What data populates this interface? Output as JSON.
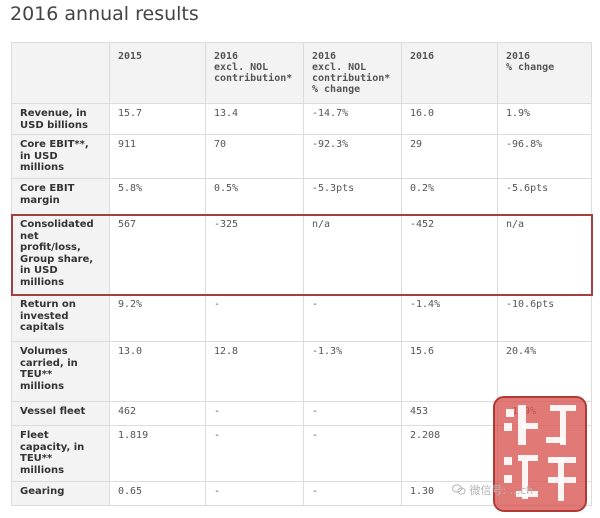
{
  "title": "2016 annual results",
  "columns": [
    "",
    "2015",
    "2016\nexcl. NOL\ncontribution*",
    "2016\nexcl. NOL\ncontribution*\n% change",
    "2016",
    "2016\n% change"
  ],
  "rows": [
    {
      "label": "Revenue, in\nUSD billions",
      "cells": [
        "15.7",
        "13.4",
        "-14.7%",
        "16.0",
        "1.9%"
      ]
    },
    {
      "label": "Core EBIT**,\nin USD\nmillions",
      "cells": [
        "911",
        "70",
        "-92.3%",
        "29",
        "-96.8%"
      ]
    },
    {
      "label": "Core EBIT\nmargin",
      "cells": [
        "5.8%",
        "0.5%",
        "-5.3pts",
        "0.2%",
        "-5.6pts"
      ]
    },
    {
      "label": "Consolidated\nnet\nprofit/loss,\nGroup share,\nin USD\nmillions",
      "cells": [
        "567",
        "-325",
        "n/a",
        "-452",
        "n/a"
      ],
      "highlighted": true
    },
    {
      "label": "Return on\ninvested\ncapitals",
      "cells": [
        "9.2%",
        "-",
        "-",
        "-1.4%",
        "-10.6pts"
      ]
    },
    {
      "label": "Volumes\ncarried, in\nTEU**\nmillions",
      "cells": [
        "13.0",
        "12.8",
        "-1.3%",
        "15.6",
        "20.4%"
      ]
    },
    {
      "label": "Vessel fleet",
      "cells": [
        "462",
        "-",
        "-",
        "453",
        "-1.9%"
      ]
    },
    {
      "label": "Fleet\ncapacity, in\nTEU**\nmillions",
      "cells": [
        "1.819",
        "-",
        "-",
        "2.208",
        ""
      ]
    },
    {
      "label": "Gearing",
      "cells": [
        "0.65",
        "-",
        "-",
        "1.30",
        ""
      ]
    }
  ],
  "stamp_text": "汀酷海運",
  "watermark_text": "微信号: ...ch",
  "colors": {
    "highlight_border": "#a34141",
    "stamp_red": "#c0392b",
    "header_bg": "#f3f3f3"
  }
}
